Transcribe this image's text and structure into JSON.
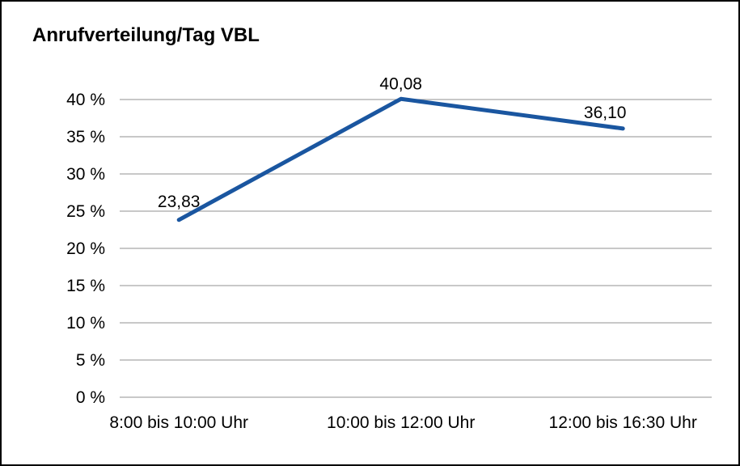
{
  "chart_data": {
    "type": "line",
    "title": "Anrufverteilung/Tag VBL",
    "categories": [
      "8:00 bis 10:00 Uhr",
      "10:00 bis 12:00 Uhr",
      "12:00 bis 16:30 Uhr"
    ],
    "values": [
      23.83,
      40.08,
      36.1
    ],
    "data_labels": [
      "23,83",
      "40,08",
      "36,10"
    ],
    "xlabel": "",
    "ylabel": "",
    "ylim": [
      0,
      40
    ],
    "yticks": [
      {
        "value": 0,
        "label": "0 %"
      },
      {
        "value": 5,
        "label": "5 %"
      },
      {
        "value": 10,
        "label": "10 %"
      },
      {
        "value": 15,
        "label": "15 %"
      },
      {
        "value": 20,
        "label": "20 %"
      },
      {
        "value": 25,
        "label": "25 %"
      },
      {
        "value": 30,
        "label": "30 %"
      },
      {
        "value": 35,
        "label": "35 %"
      },
      {
        "value": 40,
        "label": "40 %"
      }
    ],
    "grid": true,
    "legend": "none",
    "colors": {
      "line": "#1a56a0",
      "grid": "#a6a6a6",
      "text": "#000000",
      "background": "#ffffff",
      "border": "#000000"
    }
  }
}
